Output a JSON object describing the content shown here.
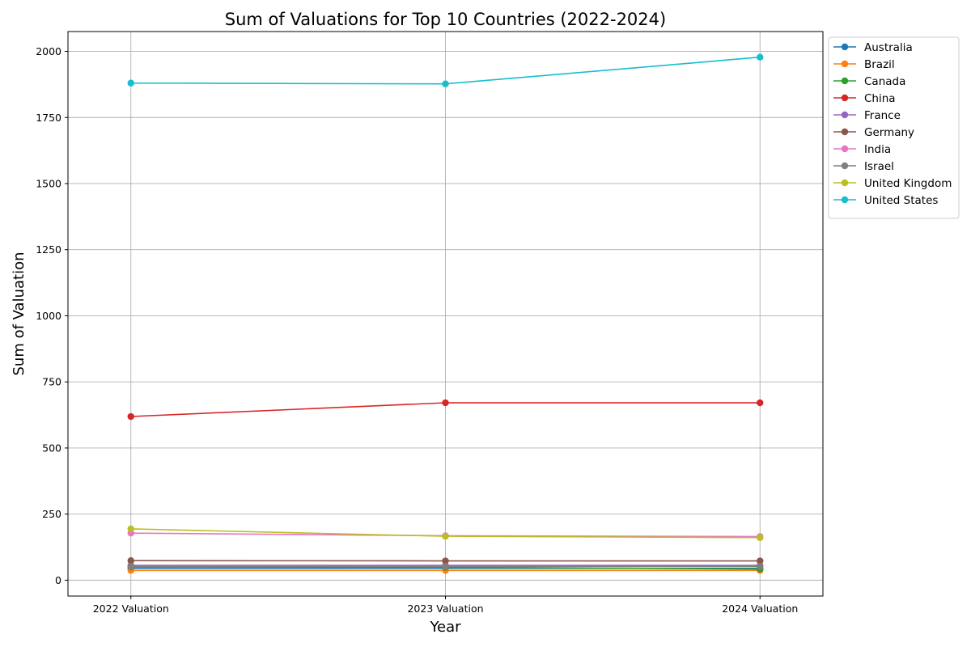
{
  "chart_data": {
    "type": "line",
    "title": "Sum of Valuations for Top 10 Countries (2022-2024)",
    "xlabel": "Year",
    "ylabel": "Sum of Valuation",
    "categories": [
      "2022 Valuation",
      "2023 Valuation",
      "2024 Valuation"
    ],
    "ylim": [
      -60,
      2075
    ],
    "yticks": [
      0,
      250,
      500,
      750,
      1000,
      1250,
      1500,
      1750,
      2000
    ],
    "grid": true,
    "legend_position": "outside-top-right",
    "series": [
      {
        "name": "Australia",
        "color": "#1f77b4",
        "values": [
          45,
          45,
          45
        ]
      },
      {
        "name": "Brazil",
        "color": "#ff7f0e",
        "values": [
          37,
          37,
          37
        ]
      },
      {
        "name": "Canada",
        "color": "#2ca02c",
        "values": [
          50,
          49,
          42
        ]
      },
      {
        "name": "China",
        "color": "#d62728",
        "values": [
          619,
          671,
          671
        ]
      },
      {
        "name": "France",
        "color": "#9467bd",
        "values": [
          56,
          56,
          56
        ]
      },
      {
        "name": "Germany",
        "color": "#8c564b",
        "values": [
          74,
          73,
          73
        ]
      },
      {
        "name": "India",
        "color": "#e377c2",
        "values": [
          178,
          168,
          165
        ]
      },
      {
        "name": "Israel",
        "color": "#7f7f7f",
        "values": [
          52,
          52,
          52
        ]
      },
      {
        "name": "United Kingdom",
        "color": "#bcbd22",
        "values": [
          194,
          166,
          161
        ]
      },
      {
        "name": "United States",
        "color": "#17becf",
        "values": [
          1880,
          1877,
          1978
        ]
      }
    ]
  }
}
